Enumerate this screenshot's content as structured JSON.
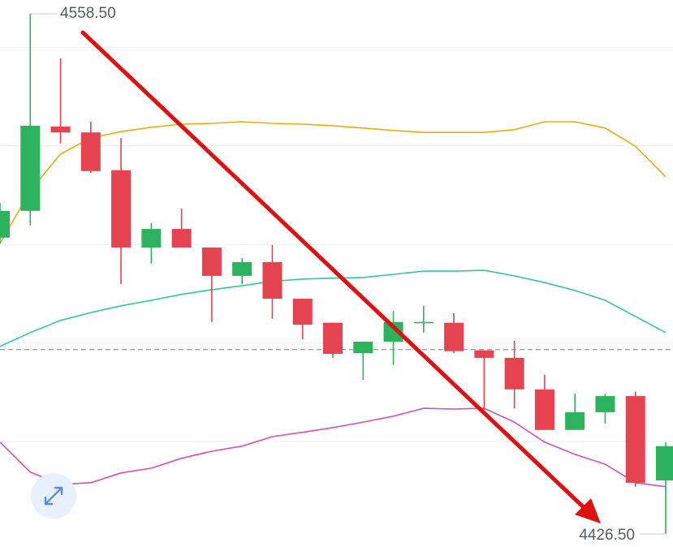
{
  "chart_data": {
    "type": "candlestick",
    "open": [
      4501.7,
      4508.5,
      4529.9,
      4528.4,
      4518.8,
      4499.2,
      4503.9,
      4499.2,
      4492.0,
      4495.5,
      4486.2,
      4480.1,
      4472.4,
      4475.3,
      4480.1,
      4480.1,
      4473.1,
      4471.2,
      4463.2,
      4452.9,
      4457.4,
      4461.5,
      4440.1
    ],
    "high": [
      4510.5,
      4558.5,
      4547.2,
      4531.1,
      4527.0,
      4505.4,
      4509.1,
      4499.2,
      4496.5,
      4499.8,
      4486.2,
      4480.1,
      4475.3,
      4483.1,
      4484.4,
      4482.5,
      4473.1,
      4475.5,
      4466.9,
      4462.1,
      4462.1,
      4462.6,
      4449.8
    ],
    "low": [
      4500.2,
      4504.8,
      4525.6,
      4518.1,
      4489.9,
      4495.1,
      4499.2,
      4480.3,
      4489.9,
      4481.1,
      4475.9,
      4471.2,
      4465.6,
      4469.4,
      4477.6,
      4472.4,
      4458.0,
      4458.4,
      4452.9,
      4452.9,
      4454.5,
      4438.5,
      4426.5
    ],
    "close": [
      4508.5,
      4530.1,
      4528.4,
      4518.6,
      4499.2,
      4503.9,
      4499.2,
      4492.0,
      4495.5,
      4486.2,
      4479.6,
      4472.2,
      4475.3,
      4480.3,
      4480.3,
      4472.9,
      4471.2,
      4463.2,
      4452.9,
      4457.4,
      4461.5,
      4439.5,
      4448.8
    ],
    "up_color": "#2db35d",
    "down_color": "#e5434f",
    "series": [
      {
        "color": "#f0ab0a",
        "values": [
          4500.2,
          4513.6,
          4522.9,
          4527.0,
          4528.6,
          4529.7,
          4530.5,
          4530.7,
          4531.1,
          4530.7,
          4530.5,
          4530.1,
          4529.5,
          4528.9,
          4528.4,
          4528.4,
          4528.4,
          4529.1,
          4531.1,
          4531.1,
          4529.5,
          4524.9,
          4517.1
        ]
      },
      {
        "color": "#2ec9a2",
        "values": [
          4474.1,
          4477.6,
          4480.7,
          4482.7,
          4484.4,
          4485.8,
          4487.3,
          4488.5,
          4489.5,
          4490.6,
          4491.2,
          4491.4,
          4491.6,
          4492.4,
          4493.2,
          4493.2,
          4493.4,
          4492.0,
          4490.3,
          4488.3,
          4485.8,
          4481.7,
          4477.6
        ]
      },
      {
        "color": "#d94fb5",
        "values": [
          4449.8,
          4442.2,
          4439.1,
          4439.5,
          4442.0,
          4443.2,
          4445.7,
          4447.5,
          4448.8,
          4451.2,
          4452.3,
          4453.5,
          4454.9,
          4456.4,
          4458.4,
          4458.2,
          4458.4,
          4454.9,
          4449.8,
          4446.7,
          4444.2,
          4439.5,
          4438.5
        ]
      }
    ],
    "current_price": 4473.3,
    "ylim": [
      4423.2,
      4562.0
    ],
    "ygrid": [
      4450,
      4475,
      4500,
      4525,
      4550
    ],
    "max_label": {
      "value": 4558.5,
      "label": "4558.50"
    },
    "min_label": {
      "value": 4426.5,
      "label": "4426.50"
    }
  }
}
